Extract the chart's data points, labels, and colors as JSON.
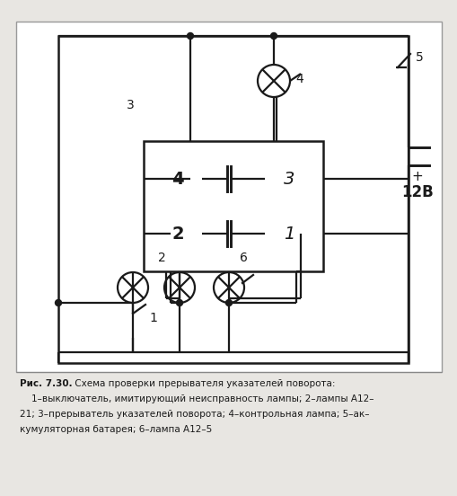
{
  "bg_color": "#ffffff",
  "outer_bg": "#e8e6e2",
  "line_color": "#1a1a1a",
  "title_bold": "Рис. 7.30.",
  "title_normal": " Схема проверки прерывателя указателей поворота:",
  "caption_line2": "    1–выключатель, имитирующий неисправность лампы; 2–лампы А12–",
  "caption_line3": "21; 3–прерыватель указателей поворота; 4–контрольная лампа; 5–ак–",
  "caption_line4": "кумуляторная батарея; 6–лампа А12–5",
  "fig_width": 5.1,
  "fig_height": 5.52,
  "dpi": 100
}
